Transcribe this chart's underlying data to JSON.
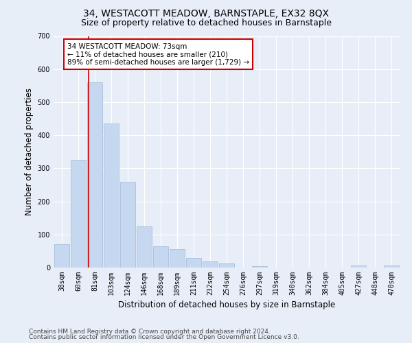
{
  "title": "34, WESTACOTT MEADOW, BARNSTAPLE, EX32 8QX",
  "subtitle": "Size of property relative to detached houses in Barnstaple",
  "xlabel": "Distribution of detached houses by size in Barnstaple",
  "ylabel": "Number of detached properties",
  "categories": [
    "38sqm",
    "60sqm",
    "81sqm",
    "103sqm",
    "124sqm",
    "146sqm",
    "168sqm",
    "189sqm",
    "211sqm",
    "232sqm",
    "254sqm",
    "276sqm",
    "297sqm",
    "319sqm",
    "340sqm",
    "362sqm",
    "384sqm",
    "405sqm",
    "427sqm",
    "448sqm",
    "470sqm"
  ],
  "values": [
    70,
    325,
    560,
    435,
    260,
    125,
    65,
    55,
    30,
    18,
    12,
    0,
    4,
    0,
    0,
    0,
    0,
    0,
    6,
    0,
    6
  ],
  "bar_color": "#c5d8f0",
  "bar_edge_color": "#a0b8d8",
  "vline_color": "#cc0000",
  "property_sqm": 73,
  "annotation_text": "34 WESTACOTT MEADOW: 73sqm\n← 11% of detached houses are smaller (210)\n89% of semi-detached houses are larger (1,729) →",
  "annotation_box_color": "#ffffff",
  "annotation_box_edge": "#cc0000",
  "ylim": [
    0,
    700
  ],
  "yticks": [
    0,
    100,
    200,
    300,
    400,
    500,
    600,
    700
  ],
  "bg_color": "#e8eef8",
  "plot_bg_color": "#e8eef8",
  "footer1": "Contains HM Land Registry data © Crown copyright and database right 2024.",
  "footer2": "Contains public sector information licensed under the Open Government Licence v3.0.",
  "title_fontsize": 10,
  "subtitle_fontsize": 9,
  "label_fontsize": 8.5,
  "tick_fontsize": 7,
  "footer_fontsize": 6.5,
  "grid_color": "#ffffff"
}
